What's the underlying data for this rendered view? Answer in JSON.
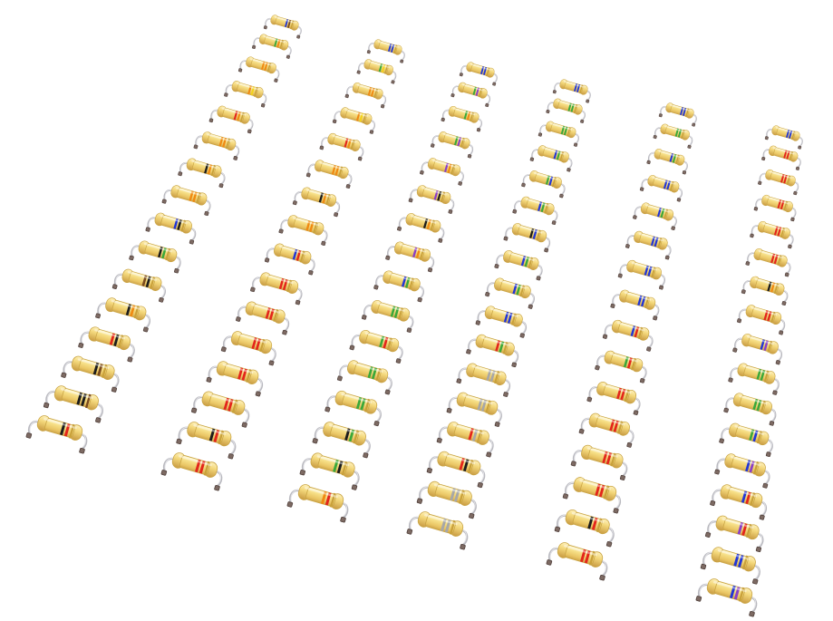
{
  "scene": {
    "subject": "axial-lead-resistor",
    "background": "#ffffff",
    "body_color": "#f2d67a",
    "lead_color": "#b9b9bf",
    "band_palette": {
      "black": "#1c1c1c",
      "brown": "#7a4a1e",
      "red": "#e3261b",
      "orange": "#f08a12",
      "yellow": "#f3d21a",
      "green": "#3aa83a",
      "blue": "#2236d6",
      "violet": "#8a3fc6",
      "gray": "#a7a7a7",
      "gold": "#c9a13b"
    },
    "rows": [
      {
        "bands": [
          [
            "blue",
            "brown",
            "gold"
          ],
          [
            "green",
            "orange",
            "gold"
          ],
          [
            "orange",
            "orange",
            "gold"
          ],
          [
            "orange",
            "yellow",
            "gold"
          ],
          [
            "red",
            "orange",
            "gold"
          ],
          [
            "orange",
            "orange",
            "gold"
          ],
          [
            "black",
            "orange",
            "gold"
          ],
          [
            "orange",
            "orange",
            "gold"
          ],
          [
            "blue",
            "black",
            "gold"
          ],
          [
            "black",
            "green",
            "gold"
          ],
          [
            "brown",
            "black",
            "gold"
          ],
          [
            "black",
            "orange",
            "gold"
          ],
          [
            "red",
            "black",
            "gold"
          ],
          [
            "black",
            "brown",
            "gold"
          ],
          [
            "black",
            "black",
            "brown"
          ],
          [
            "black",
            "red",
            "gold"
          ]
        ]
      },
      {
        "bands": [
          [
            "blue",
            "blue",
            "gold"
          ],
          [
            "green",
            "yellow",
            "gold"
          ],
          [
            "orange",
            "orange",
            "gold"
          ],
          [
            "orange",
            "yellow",
            "gold"
          ],
          [
            "red",
            "orange",
            "gold"
          ],
          [
            "orange",
            "orange",
            "gold"
          ],
          [
            "black",
            "orange",
            "gold"
          ],
          [
            "orange",
            "orange",
            "gold"
          ],
          [
            "blue",
            "red",
            "gold"
          ],
          [
            "red",
            "red",
            "gold"
          ],
          [
            "red",
            "red",
            "gold"
          ],
          [
            "red",
            "red",
            "gold"
          ],
          [
            "red",
            "red",
            "gold"
          ],
          [
            "red",
            "red",
            "gold"
          ],
          [
            "black",
            "red",
            "gold"
          ],
          [
            "red",
            "red",
            "gold"
          ]
        ]
      },
      {
        "bands": [
          [
            "blue",
            "blue",
            "gold"
          ],
          [
            "green",
            "violet",
            "gold"
          ],
          [
            "green",
            "orange",
            "gold"
          ],
          [
            "green",
            "violet",
            "gold"
          ],
          [
            "violet",
            "orange",
            "gold"
          ],
          [
            "violet",
            "black",
            "gold"
          ],
          [
            "black",
            "orange",
            "gold"
          ],
          [
            "violet",
            "orange",
            "gold"
          ],
          [
            "blue",
            "green",
            "gold"
          ],
          [
            "green",
            "green",
            "gold"
          ],
          [
            "green",
            "red",
            "gold"
          ],
          [
            "green",
            "green",
            "gold"
          ],
          [
            "green",
            "green",
            "gold"
          ],
          [
            "black",
            "green",
            "gold"
          ],
          [
            "green",
            "black",
            "gold"
          ],
          [
            "orange",
            "red",
            "gold"
          ]
        ]
      },
      {
        "bands": [
          [
            "blue",
            "blue",
            "gold"
          ],
          [
            "green",
            "green",
            "gold"
          ],
          [
            "green",
            "green",
            "gold"
          ],
          [
            "blue",
            "green",
            "gold"
          ],
          [
            "green",
            "blue",
            "gold"
          ],
          [
            "blue",
            "green",
            "gold"
          ],
          [
            "black",
            "blue",
            "gold"
          ],
          [
            "blue",
            "green",
            "gold"
          ],
          [
            "blue",
            "green",
            "gold"
          ],
          [
            "blue",
            "blue",
            "gold"
          ],
          [
            "red",
            "green",
            "gold"
          ],
          [
            "gray",
            "gray",
            "gold"
          ],
          [
            "gray",
            "gray",
            "gold"
          ],
          [
            "red",
            "gray",
            "gold"
          ],
          [
            "red",
            "black",
            "gold"
          ],
          [
            "gray",
            "gray",
            "gold"
          ],
          [
            "gray",
            "gray",
            "gold"
          ]
        ]
      },
      {
        "bands": [
          [
            "blue",
            "blue",
            "gold"
          ],
          [
            "green",
            "green",
            "gold"
          ],
          [
            "blue",
            "green",
            "gold"
          ],
          [
            "blue",
            "blue",
            "gold"
          ],
          [
            "blue",
            "green",
            "gold"
          ],
          [
            "blue",
            "blue",
            "gold"
          ],
          [
            "blue",
            "blue",
            "gold"
          ],
          [
            "blue",
            "blue",
            "gold"
          ],
          [
            "blue",
            "red",
            "gold"
          ],
          [
            "green",
            "red",
            "gold"
          ],
          [
            "red",
            "red",
            "gold"
          ],
          [
            "red",
            "red",
            "gold"
          ],
          [
            "red",
            "red",
            "gold"
          ],
          [
            "red",
            "red",
            "gold"
          ],
          [
            "black",
            "red",
            "gold"
          ],
          [
            "red",
            "red",
            "gold"
          ]
        ]
      },
      {
        "bands": [
          [
            "blue",
            "blue",
            "gold"
          ],
          [
            "red",
            "red",
            "gold"
          ],
          [
            "red",
            "red",
            "gold"
          ],
          [
            "red",
            "red",
            "gold"
          ],
          [
            "red",
            "red",
            "gold"
          ],
          [
            "red",
            "red",
            "gold"
          ],
          [
            "black",
            "orange",
            "gold"
          ],
          [
            "red",
            "red",
            "gold"
          ],
          [
            "blue",
            "violet",
            "gold"
          ],
          [
            "green",
            "green",
            "gold"
          ],
          [
            "green",
            "green",
            "gold"
          ],
          [
            "green",
            "blue",
            "gold"
          ],
          [
            "blue",
            "violet",
            "gold"
          ],
          [
            "blue",
            "red",
            "gold"
          ],
          [
            "violet",
            "red",
            "gold"
          ],
          [
            "blue",
            "blue",
            "gold"
          ],
          [
            "blue",
            "violet",
            "gold"
          ]
        ]
      }
    ]
  }
}
